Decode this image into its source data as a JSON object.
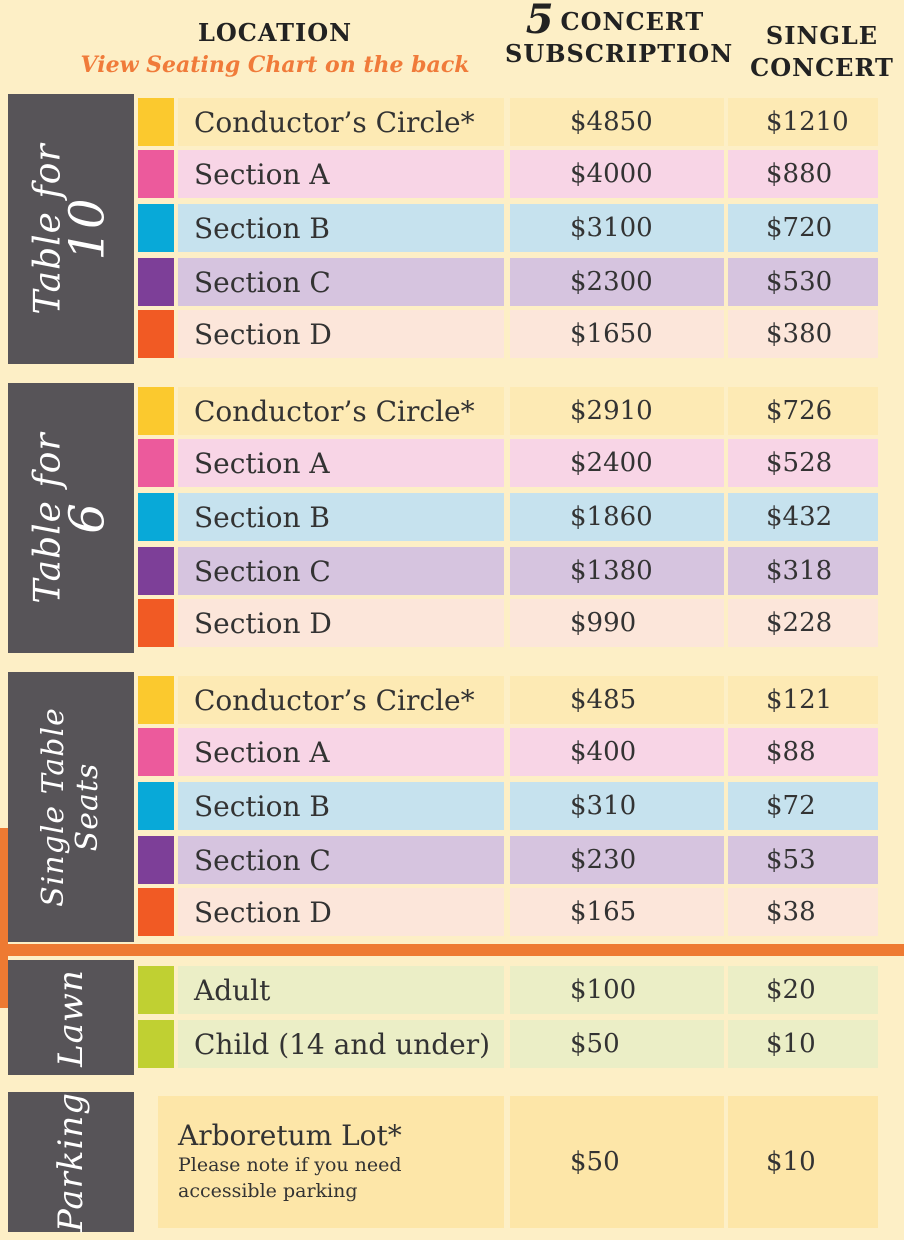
{
  "header": {
    "location": "LOCATION",
    "seating_note": "View Seating Chart on the back",
    "five_num": "5",
    "five_word": "CONCERT",
    "subscription": "SUBSCRIPTION",
    "single_line1": "SINGLE",
    "single_line2": "CONCERT"
  },
  "colors": {
    "sidebar": "#575458",
    "accent_orange": "#ee7a32",
    "conductor": "#fbc92e",
    "section_a": "#ec5a9c",
    "section_b": "#08a9d8",
    "section_c": "#7d3f98",
    "section_d": "#f15a24",
    "lawn": "#c0d032"
  },
  "groups": [
    {
      "label": "Table for",
      "label_num": "10",
      "rows": [
        {
          "location": "Conductor’s Circle*",
          "subscription": "$4850",
          "single": "$1210"
        },
        {
          "location": "Section A",
          "subscription": "$4000",
          "single": "$880"
        },
        {
          "location": "Section B",
          "subscription": "$3100",
          "single": "$720"
        },
        {
          "location": "Section C",
          "subscription": "$2300",
          "single": "$530"
        },
        {
          "location": "Section D",
          "subscription": "$1650",
          "single": "$380"
        }
      ]
    },
    {
      "label": "Table for",
      "label_num": "6",
      "rows": [
        {
          "location": "Conductor’s Circle*",
          "subscription": "$2910",
          "single": "$726"
        },
        {
          "location": "Section A",
          "subscription": "$2400",
          "single": "$528"
        },
        {
          "location": "Section B",
          "subscription": "$1860",
          "single": "$432"
        },
        {
          "location": "Section C",
          "subscription": "$1380",
          "single": "$318"
        },
        {
          "location": "Section D",
          "subscription": "$990",
          "single": "$228"
        }
      ]
    },
    {
      "label": "Single Table",
      "label_num": "Seats",
      "rows": [
        {
          "location": "Conductor’s Circle*",
          "subscription": "$485",
          "single": "$121"
        },
        {
          "location": "Section A",
          "subscription": "$400",
          "single": "$88"
        },
        {
          "location": "Section B",
          "subscription": "$310",
          "single": "$72"
        },
        {
          "location": "Section C",
          "subscription": "$230",
          "single": "$53"
        },
        {
          "location": "Section D",
          "subscription": "$165",
          "single": "$38"
        }
      ]
    },
    {
      "label": "Lawn",
      "rows": [
        {
          "location": "Adult",
          "subscription": "$100",
          "single": "$20"
        },
        {
          "location": "Child (14 and under)",
          "subscription": "$50",
          "single": "$10"
        }
      ]
    },
    {
      "label": "Parking",
      "rows": [
        {
          "location": "Arboretum Lot*",
          "note": "Please note if you need accessible parking",
          "subscription": "$50",
          "single": "$10"
        }
      ]
    }
  ]
}
